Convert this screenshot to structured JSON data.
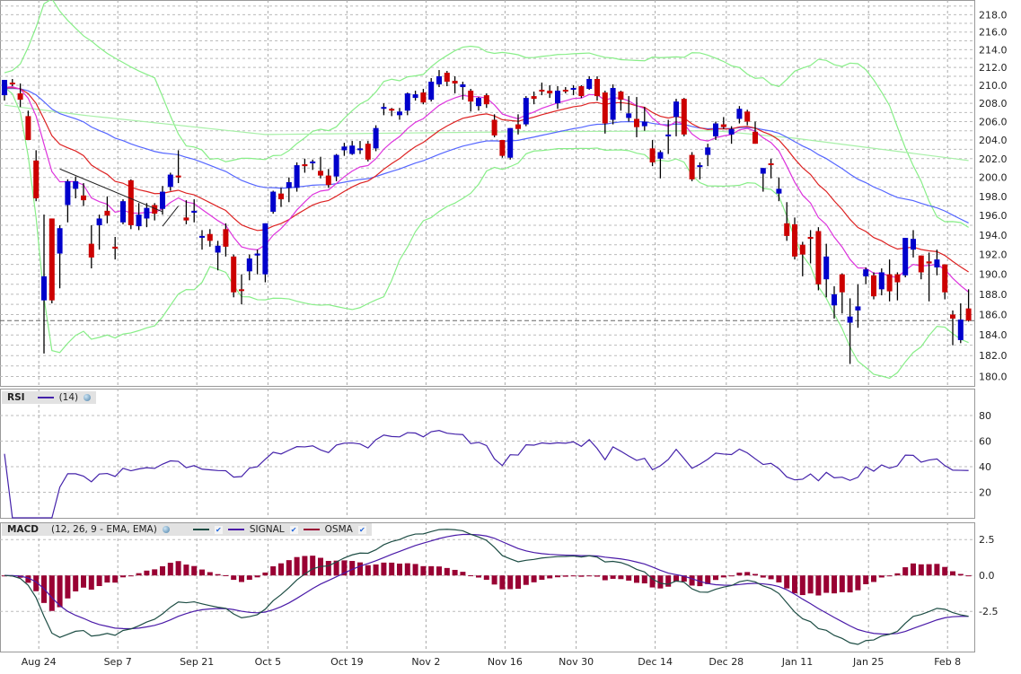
{
  "chart_data": [
    {
      "type": "candlestick",
      "panel": "price",
      "y_scale": "log",
      "ylim": [
        179.1,
        219.7
      ],
      "y_ticks": [
        180,
        182,
        184,
        186,
        188,
        190,
        192,
        194,
        196,
        198,
        200,
        202,
        204,
        206,
        208,
        210,
        212,
        214,
        216,
        218
      ],
      "x_ticks": [
        {
          "label": "Aug 24",
          "index": 4
        },
        {
          "label": "Sep 7",
          "index": 14
        },
        {
          "label": "Sep 21",
          "index": 24
        },
        {
          "label": "Oct 5",
          "index": 33
        },
        {
          "label": "Oct 19",
          "index": 43
        },
        {
          "label": "Nov 2",
          "index": 53
        },
        {
          "label": "Nov 16",
          "index": 63
        },
        {
          "label": "Nov 30",
          "index": 72
        },
        {
          "label": "Dec 14",
          "index": 82
        },
        {
          "label": "Dec 28",
          "index": 91
        },
        {
          "label": "Jan 11",
          "index": 100
        },
        {
          "label": "Jan 25",
          "index": 109
        },
        {
          "label": "Feb 8",
          "index": 119
        }
      ],
      "ohlc_columns": [
        "open",
        "high",
        "low",
        "close"
      ],
      "ohlc": [
        [
          208.9,
          210.6,
          208.3,
          210.6
        ],
        [
          210.3,
          210.7,
          209.9,
          210.1
        ],
        [
          209.1,
          210.2,
          207.6,
          208.4
        ],
        [
          206.6,
          207.2,
          204.0,
          204.0
        ],
        [
          201.8,
          202.9,
          197.5,
          197.8
        ],
        [
          187.4,
          196.1,
          182.2,
          189.8
        ],
        [
          195.7,
          195.7,
          187.1,
          187.4
        ],
        [
          192.1,
          195.0,
          188.6,
          194.7
        ],
        [
          197.1,
          199.8,
          195.3,
          199.6
        ],
        [
          198.8,
          200.1,
          197.8,
          199.6
        ],
        [
          198.1,
          199.4,
          197.0,
          197.6
        ],
        [
          193.1,
          195.0,
          190.6,
          191.7
        ],
        [
          195.0,
          196.1,
          192.5,
          195.7
        ],
        [
          196.5,
          198.0,
          195.2,
          196.0
        ],
        [
          192.8,
          193.8,
          191.5,
          192.6
        ],
        [
          195.3,
          197.7,
          195.1,
          197.5
        ],
        [
          199.7,
          199.8,
          194.6,
          195.0
        ],
        [
          194.9,
          197.3,
          194.5,
          196.1
        ],
        [
          195.7,
          197.3,
          194.8,
          196.8
        ],
        [
          197.1,
          197.3,
          195.5,
          196.2
        ],
        [
          196.7,
          199.1,
          196.1,
          198.5
        ],
        [
          199.0,
          200.5,
          198.6,
          200.3
        ],
        [
          200.2,
          202.9,
          199.4,
          200.0
        ],
        [
          195.8,
          197.6,
          195.1,
          195.5
        ],
        [
          196.3,
          197.7,
          195.3,
          196.5
        ],
        [
          193.8,
          194.5,
          192.5,
          193.9
        ],
        [
          194.1,
          194.6,
          192.8,
          193.4
        ],
        [
          192.2,
          193.4,
          190.4,
          192.9
        ],
        [
          194.6,
          195.2,
          191.8,
          192.8
        ],
        [
          191.8,
          192.0,
          187.7,
          188.2
        ],
        [
          188.5,
          190.0,
          187.0,
          188.4
        ],
        [
          190.3,
          192.0,
          189.4,
          191.6
        ],
        [
          191.9,
          192.5,
          190.0,
          192.1
        ],
        [
          190.0,
          195.2,
          189.2,
          195.2
        ],
        [
          196.4,
          198.6,
          196.2,
          198.5
        ],
        [
          198.3,
          198.9,
          196.9,
          197.7
        ],
        [
          198.9,
          200.0,
          197.4,
          199.5
        ],
        [
          198.9,
          201.6,
          198.5,
          201.3
        ],
        [
          201.4,
          202.0,
          200.5,
          201.2
        ],
        [
          201.5,
          201.9,
          200.8,
          201.7
        ],
        [
          200.7,
          202.2,
          199.9,
          200.2
        ],
        [
          200.2,
          200.9,
          198.9,
          199.2
        ],
        [
          200.1,
          202.5,
          199.6,
          202.4
        ],
        [
          202.9,
          203.7,
          202.3,
          203.3
        ],
        [
          202.5,
          203.9,
          202.4,
          203.4
        ],
        [
          203.0,
          203.9,
          202.5,
          203.1
        ],
        [
          203.6,
          203.9,
          201.7,
          201.9
        ],
        [
          203.1,
          205.6,
          202.8,
          205.3
        ],
        [
          207.4,
          208.0,
          206.7,
          207.6
        ],
        [
          207.4,
          207.5,
          206.6,
          207.2
        ],
        [
          206.7,
          207.5,
          206.2,
          207.1
        ],
        [
          207.2,
          209.2,
          206.7,
          209.1
        ],
        [
          208.6,
          209.4,
          208.3,
          209.0
        ],
        [
          209.2,
          209.6,
          207.9,
          208.1
        ],
        [
          208.4,
          210.8,
          208.2,
          210.4
        ],
        [
          210.1,
          211.7,
          209.8,
          211.0
        ],
        [
          211.4,
          211.6,
          209.9,
          210.4
        ],
        [
          210.5,
          211.0,
          209.1,
          210.2
        ],
        [
          209.8,
          210.4,
          208.4,
          210.1
        ],
        [
          209.4,
          209.6,
          207.1,
          208.2
        ],
        [
          207.7,
          208.7,
          207.2,
          208.6
        ],
        [
          208.9,
          209.1,
          207.5,
          207.9
        ],
        [
          206.2,
          206.8,
          204.3,
          204.5
        ],
        [
          204.0,
          204.0,
          202.1,
          202.3
        ],
        [
          202.1,
          205.3,
          201.9,
          205.3
        ],
        [
          205.7,
          206.8,
          204.6,
          205.2
        ],
        [
          205.7,
          208.8,
          205.5,
          208.6
        ],
        [
          208.8,
          209.3,
          207.9,
          208.5
        ],
        [
          209.5,
          210.3,
          208.9,
          209.3
        ],
        [
          209.4,
          210.0,
          208.6,
          209.1
        ],
        [
          208.0,
          209.9,
          207.4,
          209.4
        ],
        [
          209.5,
          209.8,
          209.1,
          209.3
        ],
        [
          209.5,
          210.0,
          208.9,
          209.7
        ],
        [
          209.9,
          210.0,
          208.6,
          208.8
        ],
        [
          209.6,
          211.0,
          209.5,
          210.7
        ],
        [
          210.7,
          211.0,
          208.3,
          208.8
        ],
        [
          209.2,
          209.4,
          204.7,
          205.8
        ],
        [
          206.2,
          210.1,
          205.7,
          209.7
        ],
        [
          209.3,
          209.4,
          207.2,
          208.4
        ],
        [
          206.4,
          208.8,
          206.0,
          206.9
        ],
        [
          206.3,
          208.7,
          204.3,
          205.4
        ],
        [
          205.5,
          207.6,
          205.0,
          206.0
        ],
        [
          203.1,
          204.0,
          201.2,
          201.6
        ],
        [
          202.0,
          202.9,
          199.9,
          202.7
        ],
        [
          204.4,
          206.2,
          202.5,
          204.6
        ],
        [
          206.5,
          208.5,
          204.4,
          208.2
        ],
        [
          208.5,
          208.6,
          204.4,
          204.6
        ],
        [
          202.4,
          202.7,
          199.6,
          199.8
        ],
        [
          201.1,
          201.6,
          199.8,
          201.3
        ],
        [
          202.4,
          203.6,
          201.2,
          203.2
        ],
        [
          204.4,
          206.0,
          204.0,
          205.8
        ],
        [
          205.7,
          206.5,
          205.2,
          205.4
        ],
        [
          204.6,
          205.5,
          203.6,
          205.2
        ],
        [
          206.3,
          207.7,
          205.8,
          207.4
        ],
        [
          207.1,
          207.3,
          205.6,
          206.0
        ],
        [
          204.9,
          206.0,
          203.6,
          203.6
        ],
        [
          200.4,
          201.0,
          198.5,
          201.0
        ],
        [
          201.5,
          202.0,
          199.9,
          201.4
        ],
        [
          198.3,
          200.0,
          197.5,
          198.8
        ],
        [
          195.2,
          197.4,
          193.4,
          193.9
        ],
        [
          195.1,
          195.8,
          191.5,
          191.8
        ],
        [
          193.0,
          193.3,
          189.8,
          192.0
        ],
        [
          193.8,
          194.5,
          191.1,
          193.6
        ],
        [
          194.4,
          194.8,
          188.4,
          189.0
        ],
        [
          189.5,
          193.1,
          187.7,
          191.8
        ],
        [
          186.9,
          188.8,
          185.6,
          188.0
        ],
        [
          190.0,
          190.1,
          186.1,
          188.2
        ],
        [
          185.2,
          187.6,
          181.2,
          185.8
        ],
        [
          186.4,
          189.0,
          184.7,
          186.8
        ],
        [
          189.8,
          190.7,
          189.0,
          190.5
        ],
        [
          189.9,
          190.2,
          187.5,
          187.8
        ],
        [
          188.5,
          190.6,
          187.9,
          190.2
        ],
        [
          190.0,
          191.5,
          187.3,
          188.3
        ],
        [
          190.0,
          190.2,
          187.4,
          189.2
        ],
        [
          189.9,
          193.7,
          189.7,
          193.7
        ],
        [
          192.5,
          194.5,
          191.7,
          193.6
        ],
        [
          191.9,
          191.9,
          189.5,
          190.2
        ],
        [
          191.3,
          192.2,
          187.3,
          191.1
        ],
        [
          190.7,
          192.5,
          189.9,
          191.5
        ],
        [
          191.0,
          191.0,
          187.5,
          188.2
        ],
        [
          186.0,
          186.4,
          183.0,
          185.6
        ],
        [
          183.5,
          187.1,
          183.2,
          185.5
        ],
        [
          186.6,
          188.5,
          185.3,
          185.4
        ]
      ],
      "overlays": {
        "ema_fast": {
          "period": 10,
          "color": "#dd33dd"
        },
        "ema_mid": {
          "period": 20,
          "color": "#dd2222"
        },
        "ema_slow": {
          "period": 50,
          "color": "#5566ff"
        },
        "bollinger": {
          "period": 20,
          "stddev": 2,
          "color": "#88ee88"
        },
        "long_ma_knots": {
          "color": "#a8f0a8",
          "points": [
            [
              0,
              207.8
            ],
            [
              10,
              206.7
            ],
            [
              33,
              204.6
            ],
            [
              66,
              204.9
            ],
            [
              90,
              205.0
            ],
            [
              100,
              204.2
            ],
            [
              122,
              201.8
            ]
          ]
        }
      },
      "trendlines": [
        {
          "from": [
            7,
            200.9
          ],
          "to": [
            20,
            196.4
          ]
        },
        {
          "from": [
            20,
            194.9
          ],
          "to": [
            22,
            197.0
          ]
        }
      ],
      "last_price_line": 185.4,
      "colors": {
        "up": "#0000cc",
        "down": "#cc0000"
      }
    },
    {
      "type": "line",
      "panel": "rsi",
      "title": "RSI",
      "params": "(14)",
      "period": 14,
      "ylim": [
        0,
        101
      ],
      "y_ticks": [
        20,
        40,
        60,
        80
      ],
      "color": "#4422aa"
    },
    {
      "type": "line+bar",
      "panel": "macd",
      "title": "MACD",
      "params": "(12, 26, 9 - EMA, EMA)",
      "fast": 12,
      "slow": 26,
      "signal": 9,
      "ylim": [
        -5.3,
        3.7
      ],
      "y_ticks": [
        {
          "v": 2.5,
          "label": "2.5"
        },
        {
          "v": 0,
          "label": "0.0"
        },
        {
          "v": -2.5,
          "label": "-2.5"
        }
      ],
      "legend": [
        {
          "name": "",
          "color": "#1d4d44"
        },
        {
          "name": "SIGNAL",
          "color": "#4a1aa8"
        },
        {
          "name": "OSMA",
          "color": "#990033"
        }
      ]
    }
  ],
  "ui": {
    "check": "✔"
  }
}
